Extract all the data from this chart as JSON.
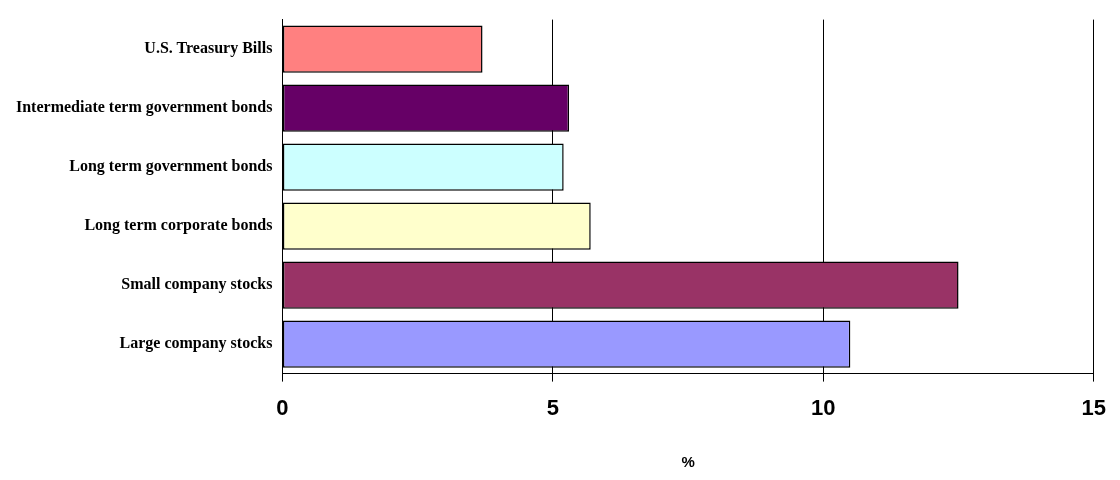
{
  "chart_data": {
    "type": "bar",
    "orientation": "horizontal",
    "xlabel": "%",
    "categories": [
      "U.S. Treasury Bills",
      "Intermediate term government bonds",
      "Long term government bonds",
      "Long term corporate bonds",
      "Small company stocks",
      "Large company stocks"
    ],
    "values": [
      3.7,
      5.3,
      5.2,
      5.7,
      12.5,
      10.5
    ],
    "colors": [
      "#ff8080",
      "#660066",
      "#ccffff",
      "#ffffcc",
      "#993366",
      "#9999ff"
    ],
    "xlim": [
      0,
      15
    ],
    "xticks": [
      0,
      5,
      10,
      15
    ],
    "grid": "x",
    "legend": false
  }
}
